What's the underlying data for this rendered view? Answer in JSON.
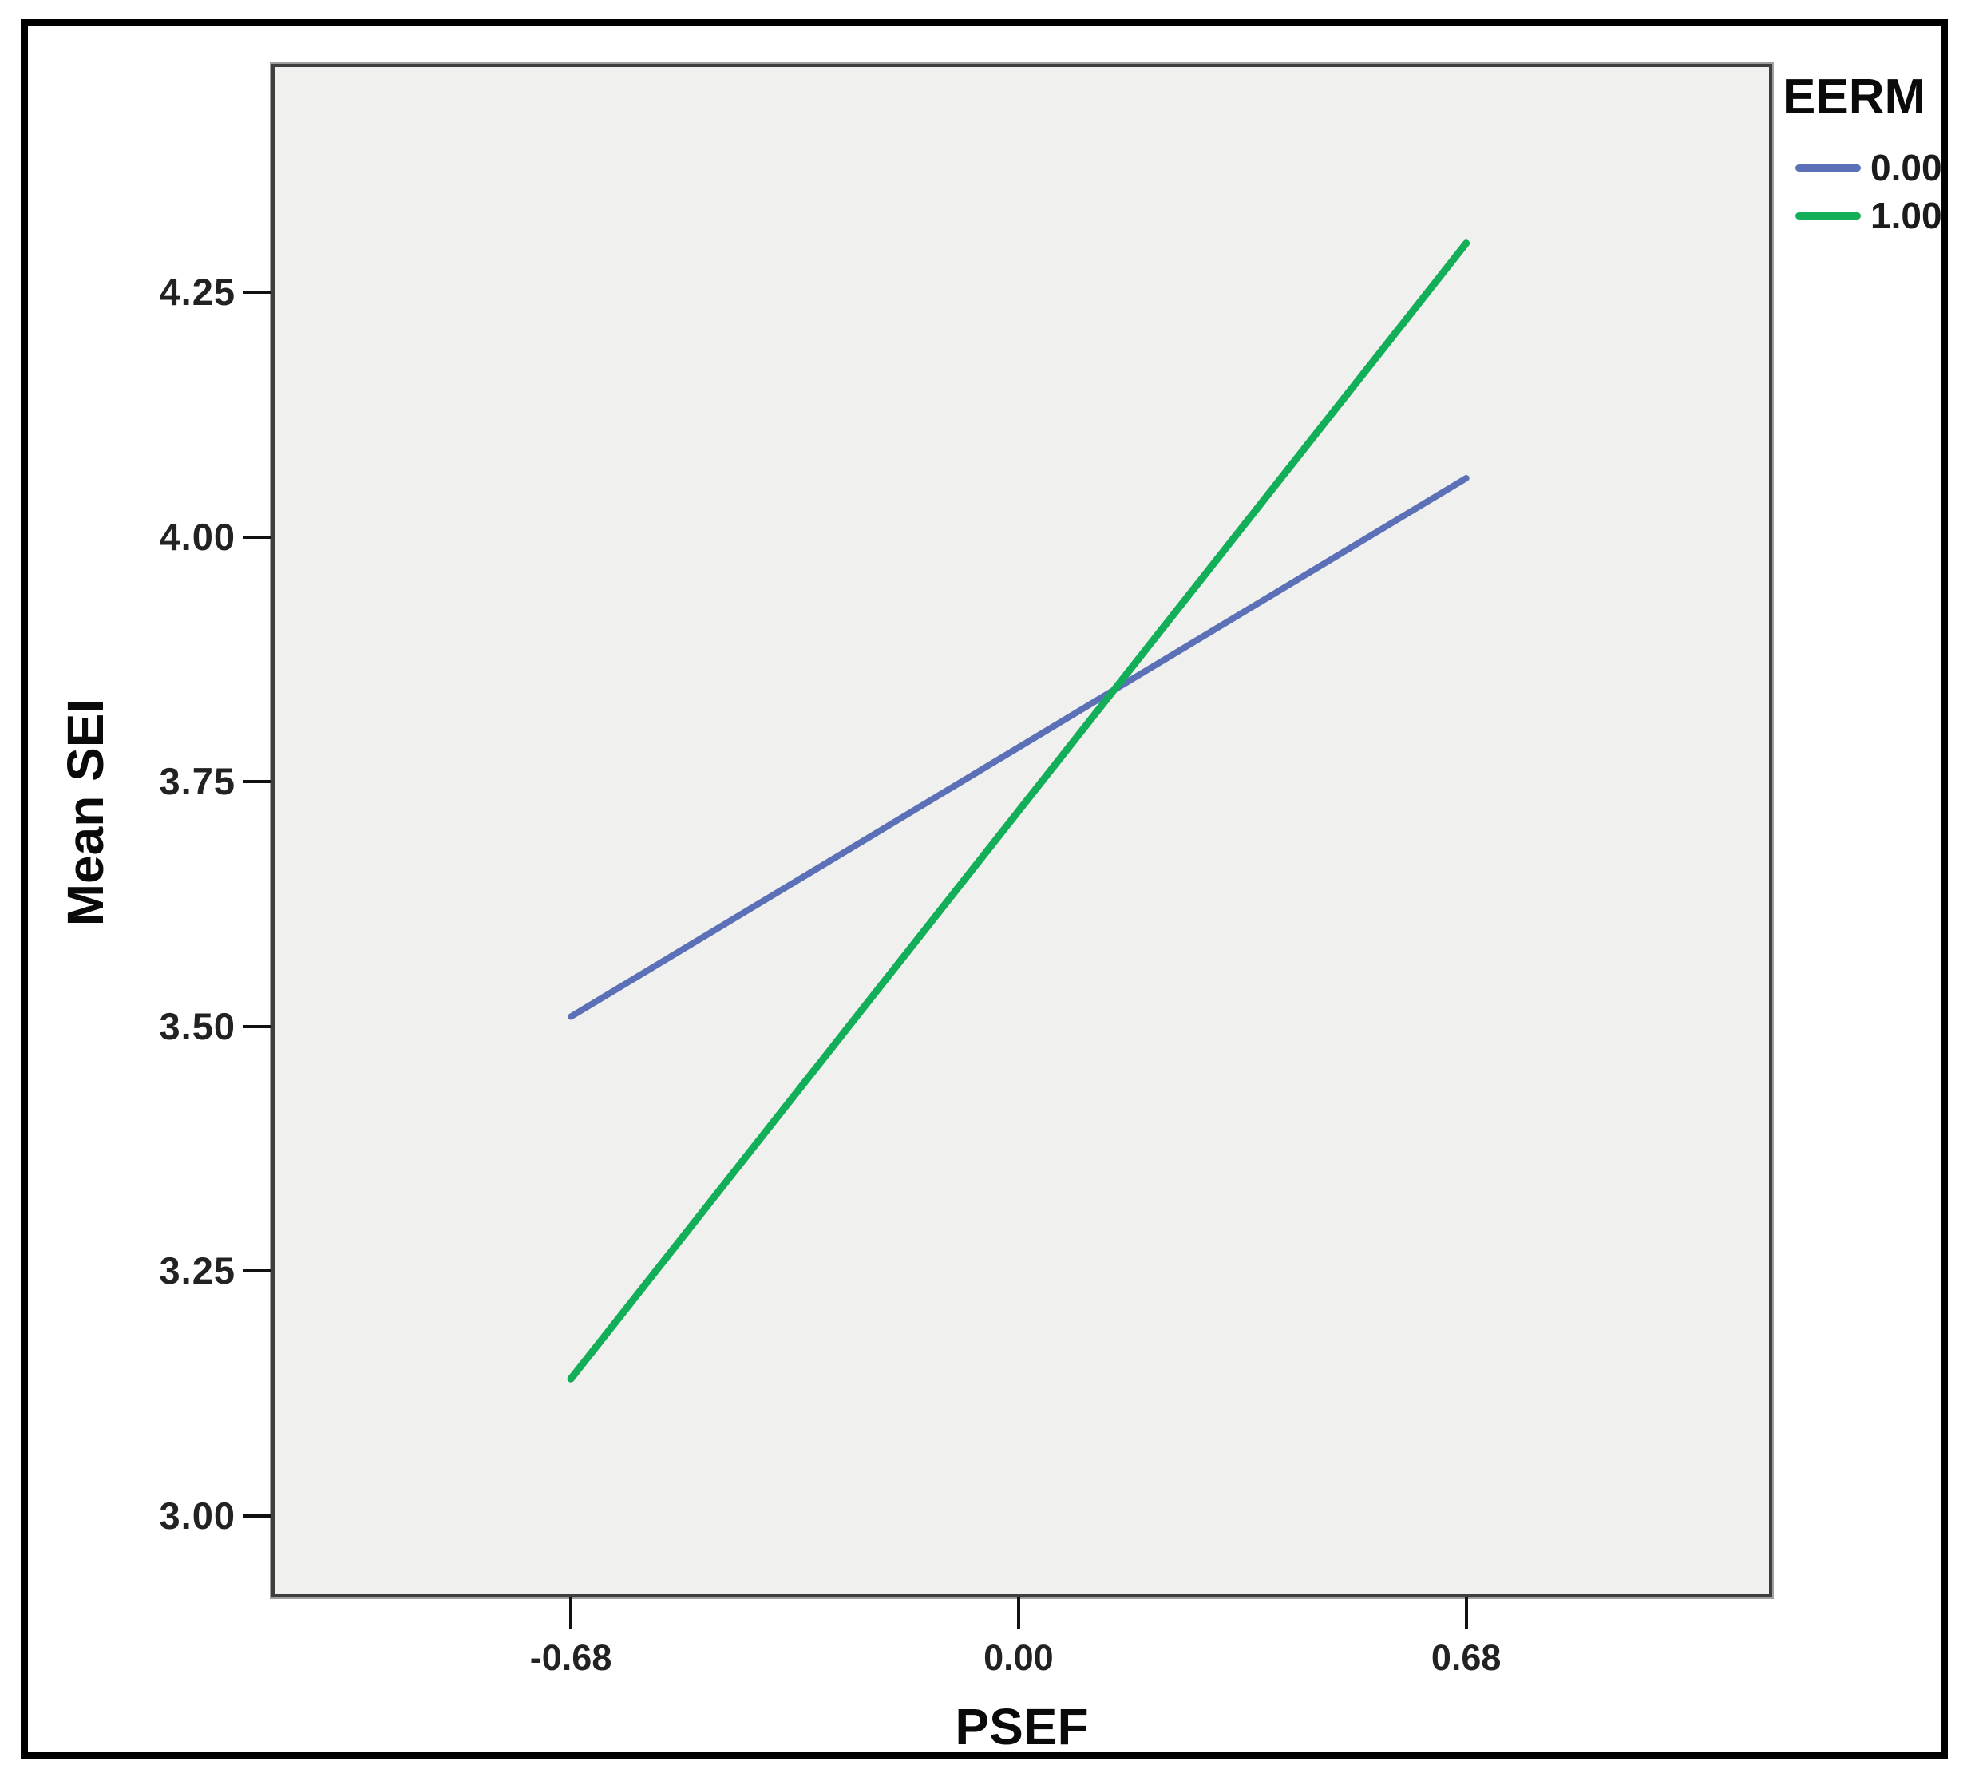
{
  "figure": {
    "background_color": "#ffffff",
    "border_color": "#000000",
    "panel_background": "#f0f0ee",
    "panel_frame_color": "#3e3e3e"
  },
  "chart_data": {
    "type": "line",
    "title": "",
    "xlabel": "PSEF",
    "ylabel": "Mean SEI",
    "x": [
      -0.68,
      0.68
    ],
    "series": [
      {
        "name": "0.00",
        "color": "#5c70b8",
        "values": [
          3.51,
          4.06
        ]
      },
      {
        "name": "1.00",
        "color": "#12ae58",
        "values": [
          3.14,
          4.3
        ]
      }
    ],
    "legend": {
      "title": "EERM",
      "entries": [
        "0.00",
        "1.00"
      ],
      "position": "top-right-outside"
    },
    "x_ticks": {
      "values": [
        -0.68,
        0.0,
        0.68
      ],
      "labels": [
        "-0.68",
        "0.00",
        "0.68"
      ]
    },
    "y_ticks": {
      "values": [
        3.0,
        3.25,
        3.5,
        3.75,
        4.0,
        4.25
      ],
      "labels": [
        "3.00",
        "3.25",
        "3.50",
        "3.75",
        "4.00",
        "4.25"
      ]
    },
    "xlim": [
      -1.13,
      1.14
    ],
    "ylim": [
      2.92,
      4.48
    ],
    "grid": false,
    "line_widths": [
      8,
      9
    ]
  }
}
